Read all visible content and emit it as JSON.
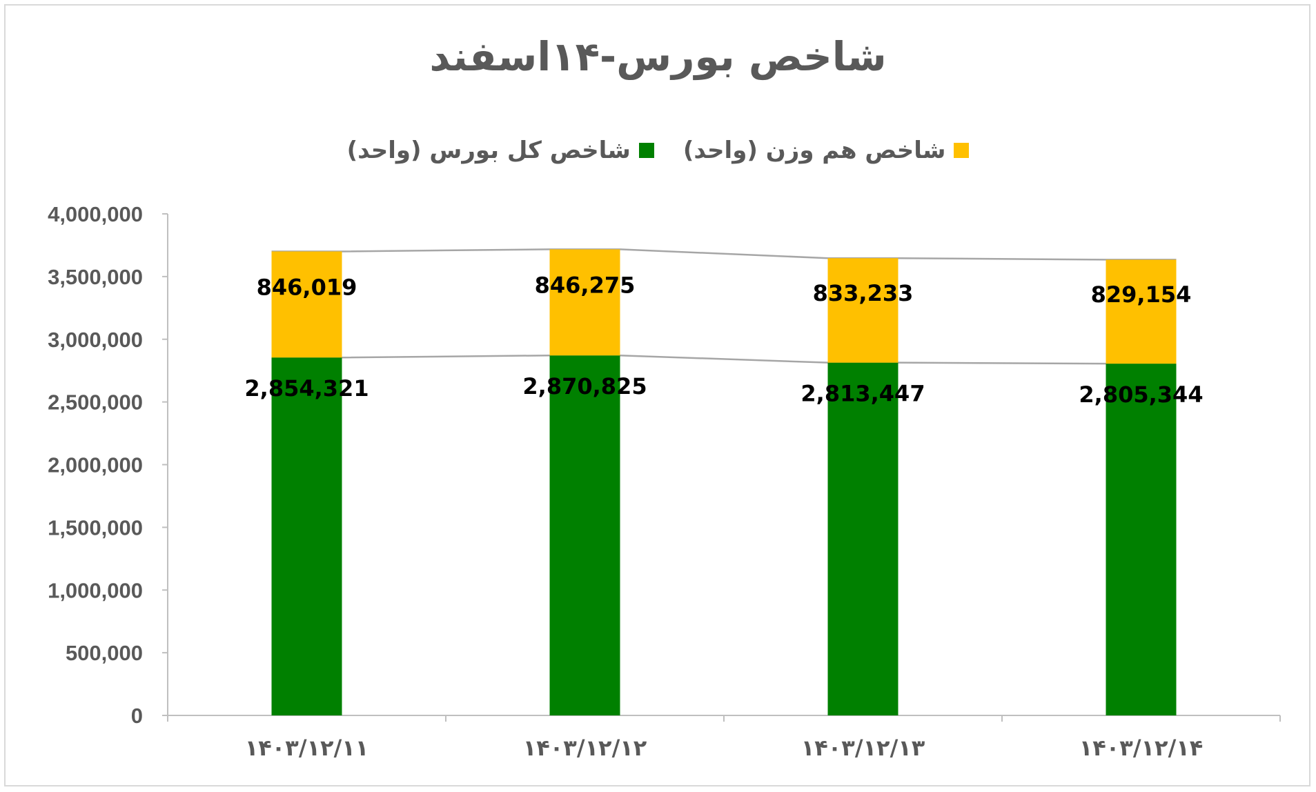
{
  "chart_data": {
    "type": "bar",
    "stacked": true,
    "title": "شاخص بورس-۱۴اسفند",
    "categories": [
      "۱۴۰۳/۱۲/۱۱",
      "۱۴۰۳/۱۲/۱۲",
      "۱۴۰۳/۱۲/۱۳",
      "۱۴۰۳/۱۲/۱۴"
    ],
    "series": [
      {
        "name": "شاخص کل بورس (واحد)",
        "color": "#008000",
        "values": [
          2854321,
          2870825,
          2813447,
          2805344
        ],
        "labels": [
          "2,854,321",
          "2,870,825",
          "2,813,447",
          "2,805,344"
        ]
      },
      {
        "name": "شاخص هم وزن (واحد)",
        "color": "#ffc000",
        "values": [
          846019,
          846275,
          833233,
          829154
        ],
        "labels": [
          "846,019",
          "846,275",
          "833,233",
          "829,154"
        ]
      }
    ],
    "ylim": [
      0,
      4000000
    ],
    "yticks": [
      0,
      500000,
      1000000,
      1500000,
      2000000,
      2500000,
      3000000,
      3500000,
      4000000
    ],
    "ytick_labels": [
      "0",
      "500,000",
      "1,000,000",
      "1,500,000",
      "2,000,000",
      "2,500,000",
      "3,000,000",
      "3,500,000",
      "4,000,000"
    ],
    "series_lines": true,
    "legend_position": "top",
    "grid": false
  }
}
